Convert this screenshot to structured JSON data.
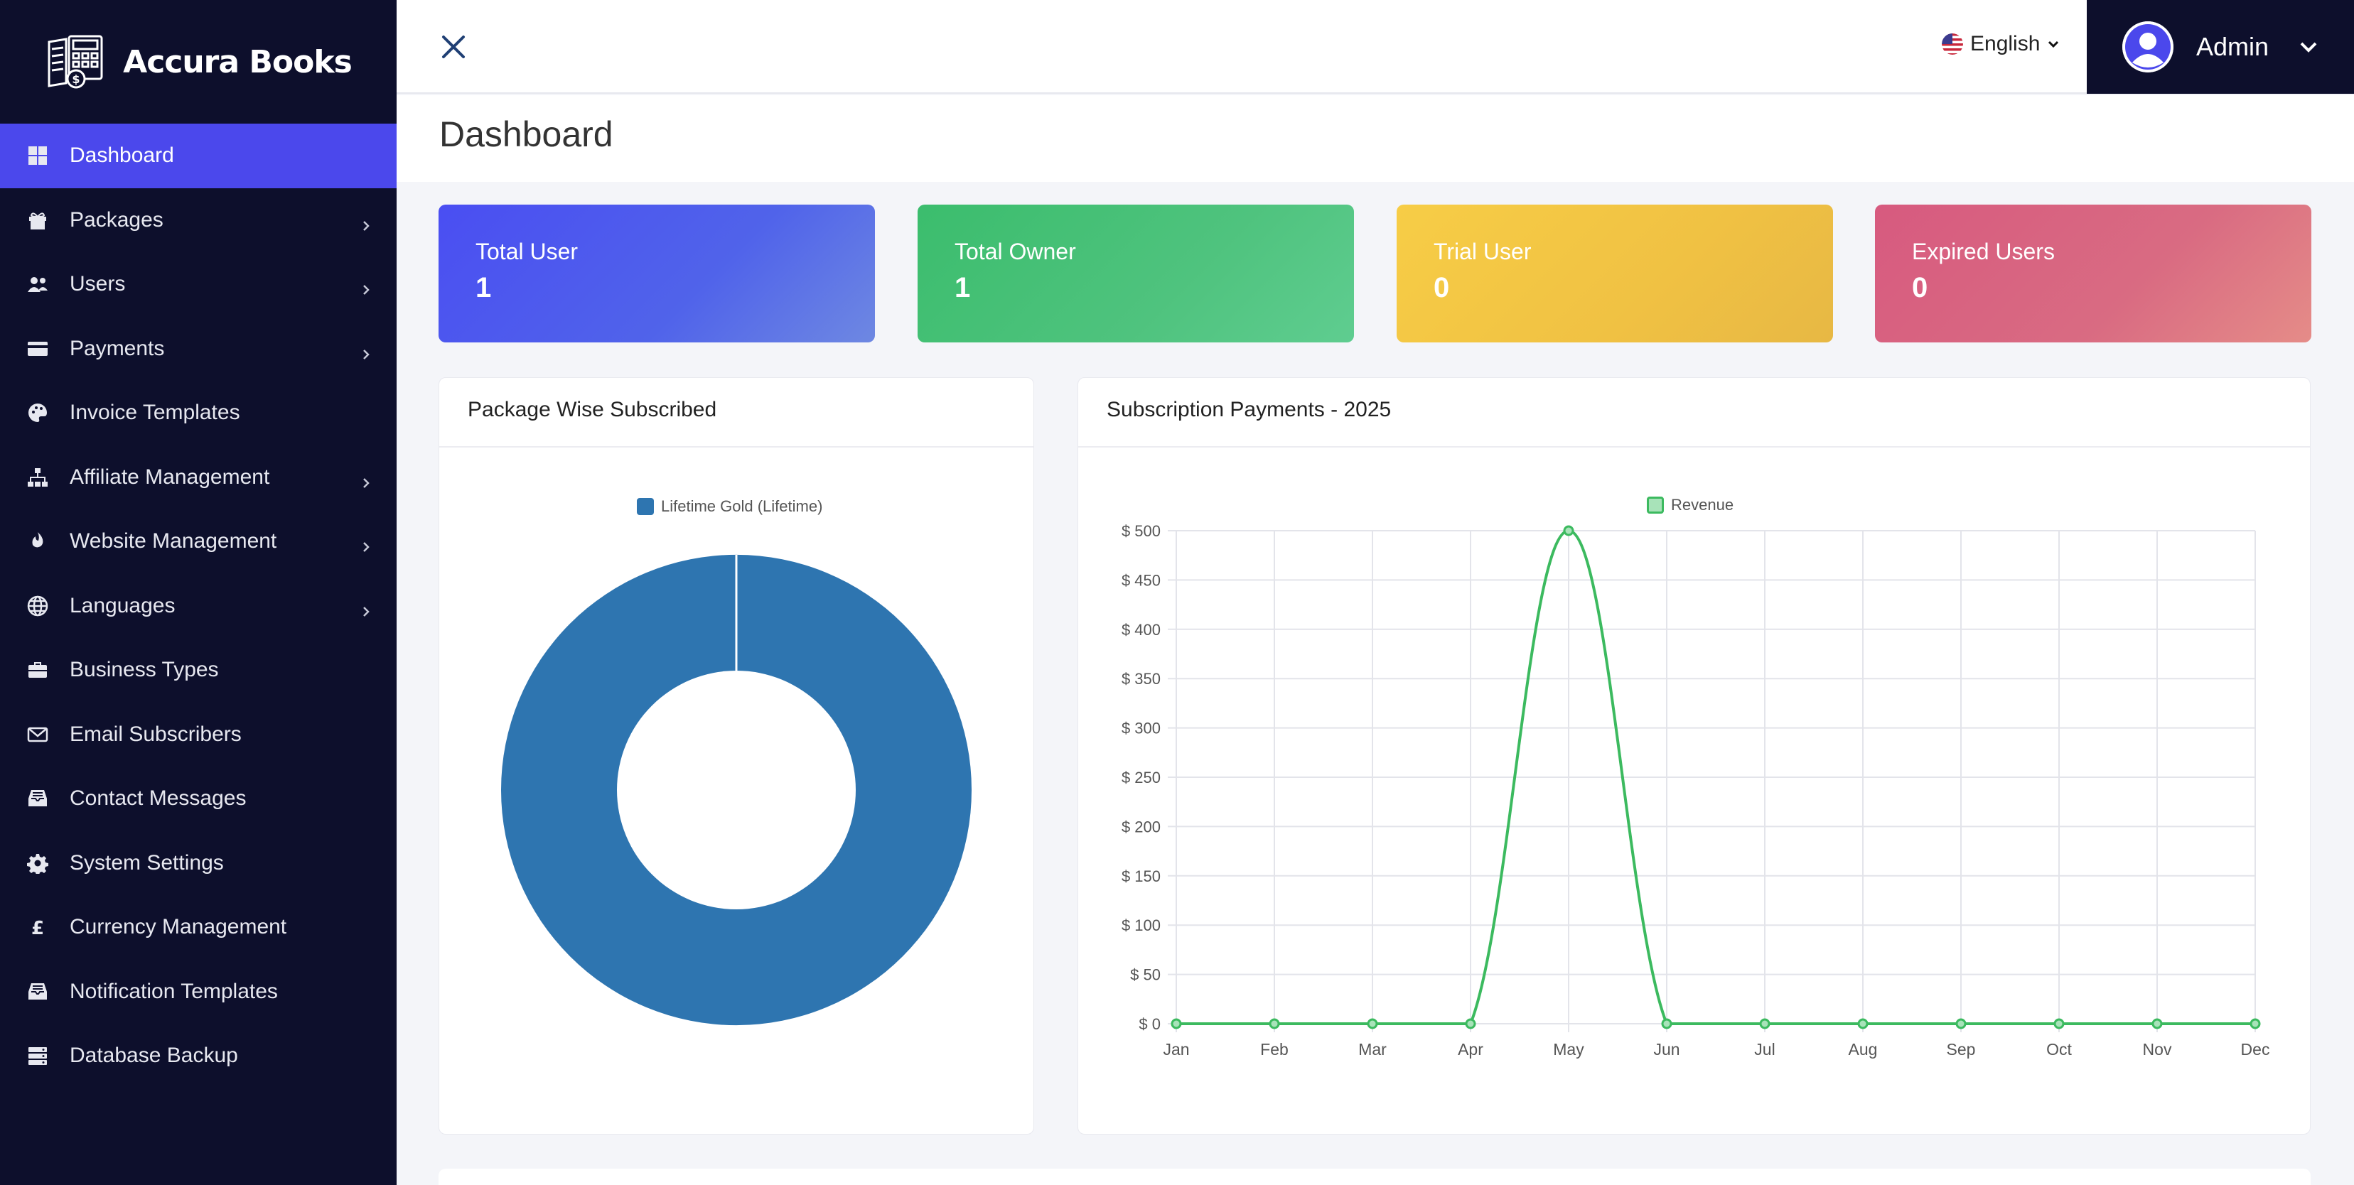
{
  "app": {
    "name": "Accura Books"
  },
  "sidebar": {
    "items": [
      {
        "label": "Dashboard",
        "icon": "grid-icon",
        "active": true,
        "has_children": false
      },
      {
        "label": "Packages",
        "icon": "gift-icon",
        "active": false,
        "has_children": true
      },
      {
        "label": "Users",
        "icon": "users-icon",
        "active": false,
        "has_children": true
      },
      {
        "label": "Payments",
        "icon": "credit-card-icon",
        "active": false,
        "has_children": true
      },
      {
        "label": "Invoice Templates",
        "icon": "palette-icon",
        "active": false,
        "has_children": false
      },
      {
        "label": "Affiliate Management",
        "icon": "sitemap-icon",
        "active": false,
        "has_children": true
      },
      {
        "label": "Website Management",
        "icon": "fire-icon",
        "active": false,
        "has_children": true
      },
      {
        "label": "Languages",
        "icon": "globe-icon",
        "active": false,
        "has_children": true
      },
      {
        "label": "Business Types",
        "icon": "briefcase-icon",
        "active": false,
        "has_children": false
      },
      {
        "label": "Email Subscribers",
        "icon": "envelope-icon",
        "active": false,
        "has_children": false
      },
      {
        "label": "Contact Messages",
        "icon": "inbox-icon",
        "active": false,
        "has_children": false
      },
      {
        "label": "System Settings",
        "icon": "gear-icon",
        "active": false,
        "has_children": false
      },
      {
        "label": "Currency Management",
        "icon": "pound-icon",
        "active": false,
        "has_children": false
      },
      {
        "label": "Notification Templates",
        "icon": "inbox-icon",
        "active": false,
        "has_children": false
      },
      {
        "label": "Database Backup",
        "icon": "server-icon",
        "active": false,
        "has_children": false
      }
    ]
  },
  "topbar": {
    "language": "English",
    "user_name": "Admin"
  },
  "page": {
    "title": "Dashboard"
  },
  "stats": [
    {
      "label": "Total User",
      "value": "1"
    },
    {
      "label": "Total Owner",
      "value": "1"
    },
    {
      "label": "Trial User",
      "value": "0"
    },
    {
      "label": "Expired Users",
      "value": "0"
    }
  ],
  "colors": {
    "sidebar_bg": "#0d0f2c",
    "active": "#4b48ec",
    "donut": "#2e75b0",
    "line": "#3cba5f"
  },
  "panels": {
    "left_title": "Package Wise Subscribed",
    "right_title": "Subscription Payments - 2025"
  },
  "chart_data": [
    {
      "type": "pie",
      "variant": "doughnut",
      "title": "Package Wise Subscribed",
      "labels": [
        "Lifetime Gold (Lifetime)"
      ],
      "values": [
        1
      ],
      "legend": "top"
    },
    {
      "type": "line",
      "title": "Subscription Payments - 2025",
      "categories": [
        "Jan",
        "Feb",
        "Mar",
        "Apr",
        "May",
        "Jun",
        "Jul",
        "Aug",
        "Sep",
        "Oct",
        "Nov",
        "Dec"
      ],
      "series": [
        {
          "name": "Revenue",
          "values": [
            0,
            0,
            0,
            0,
            500,
            0,
            0,
            0,
            0,
            0,
            0,
            0
          ]
        }
      ],
      "ylim": [
        0,
        500
      ],
      "yticks": [
        "$ 0",
        "$ 50",
        "$ 100",
        "$ 150",
        "$ 200",
        "$ 250",
        "$ 300",
        "$ 350",
        "$ 400",
        "$ 450",
        "$ 500"
      ],
      "grid": true,
      "legend": "top"
    }
  ]
}
